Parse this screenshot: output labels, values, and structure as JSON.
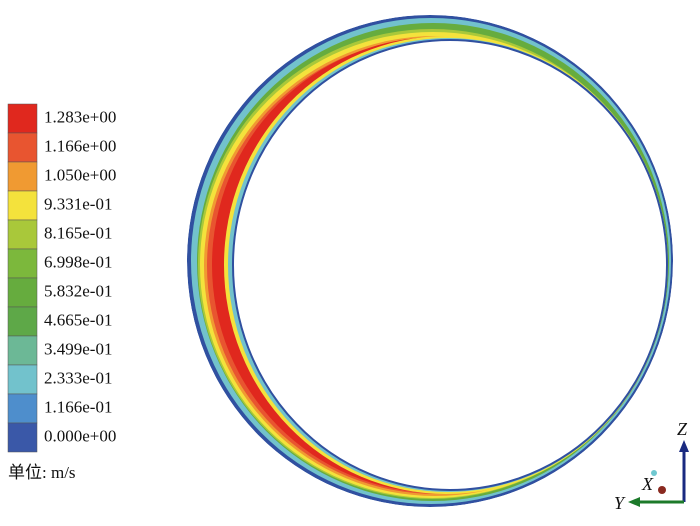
{
  "legend": {
    "labels": [
      "1.283e+00",
      "1.166e+00",
      "1.050e+00",
      "9.331e-01",
      "8.165e-01",
      "6.998e-01",
      "5.832e-01",
      "4.665e-01",
      "3.499e-01",
      "2.333e-01",
      "1.166e-01",
      "0.000e+00"
    ],
    "colors": [
      "#e0281e",
      "#e85530",
      "#f09a32",
      "#f4e23c",
      "#a9c83a",
      "#7cb83c",
      "#66ac3e",
      "#5ea848",
      "#6cb896",
      "#72c2cc",
      "#4e8ecc",
      "#3a58a8"
    ],
    "unit": "单位: m/s"
  },
  "triad": {
    "z": "Z",
    "x": "X",
    "y": "Y"
  }
}
